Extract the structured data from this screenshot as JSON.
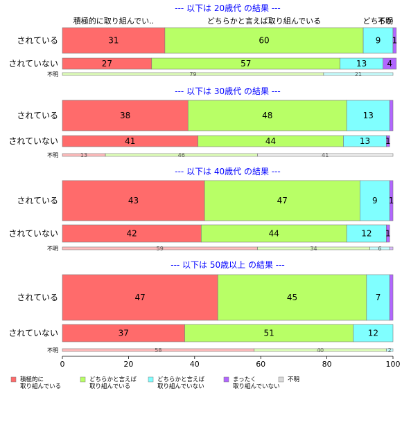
{
  "chart_data": {
    "type": "bar",
    "orientation": "horizontal",
    "stacked": true,
    "normalized_to": 100,
    "xlim": [
      0,
      100
    ],
    "xticks": [
      0,
      20,
      40,
      60,
      80,
      100
    ],
    "grid": false,
    "legend_position": "bottom",
    "top_labels": [
      {
        "text": "積極的に取り組んでい..",
        "at": 15.5
      },
      {
        "text": "どちらかと言えば取り組んでいる",
        "at": 61
      },
      {
        "text": "どちらか",
        "at": 95.5
      },
      {
        "text": "不明",
        "at": 100
      }
    ],
    "series": [
      {
        "name": "積極的に取り組んでいる",
        "legend_lines": [
          "積極的に",
          "取り組んでいる"
        ],
        "color": "#ff6b6b"
      },
      {
        "name": "どちらかと言えば取り組んでいる",
        "legend_lines": [
          "どちらかと言えば",
          "取り組んでいる"
        ],
        "color": "#b8ff66"
      },
      {
        "name": "どちらかと言えば取り組んでいない",
        "legend_lines": [
          "どちらかと言えば",
          "取り組んでいない"
        ],
        "color": "#80ffff"
      },
      {
        "name": "まったく取り組んでいない",
        "legend_lines": [
          "まったく",
          "取り組んでいない"
        ],
        "color": "#b266ff"
      },
      {
        "name": "不明",
        "legend_lines": [
          "不明"
        ],
        "color": "#d9d9d9"
      }
    ],
    "groups": [
      {
        "title": "--- 以下は 20歳代 の結果 ---",
        "rows": [
          {
            "label": "されている",
            "size": "large",
            "values": [
              31,
              60,
              9,
              1,
              0
            ],
            "data_labels": [
              "31",
              "60",
              "9",
              "1",
              ""
            ]
          },
          {
            "label": "されていない",
            "size": "medium",
            "values": [
              27,
              57,
              13,
              4,
              0
            ],
            "data_labels": [
              "27",
              "57",
              "13",
              "4",
              ""
            ]
          },
          {
            "label": "不明",
            "size": "thin",
            "values": [
              0,
              79,
              21,
              0,
              0
            ],
            "data_labels": [
              "",
              "79",
              "21",
              "",
              ""
            ]
          }
        ]
      },
      {
        "title": "--- 以下は 30歳代 の結果 ---",
        "rows": [
          {
            "label": "されている",
            "size": "large",
            "values": [
              38,
              48,
              13,
              1,
              0
            ],
            "data_labels": [
              "38",
              "48",
              "13",
              "",
              ""
            ]
          },
          {
            "label": "されていない",
            "size": "medium",
            "values": [
              41,
              44,
              13,
              1,
              0
            ],
            "data_labels": [
              "41",
              "44",
              "13",
              "1",
              ""
            ]
          },
          {
            "label": "不明",
            "size": "thin",
            "values": [
              13,
              46,
              0,
              0,
              41
            ],
            "data_labels": [
              "13",
              "46",
              "",
              "",
              "41"
            ]
          }
        ]
      },
      {
        "title": "--- 以下は 40歳代 の結果 ---",
        "rows": [
          {
            "label": "されている",
            "size": "large",
            "values": [
              43,
              47,
              9,
              1,
              0
            ],
            "data_labels": [
              "43",
              "47",
              "9",
              "1",
              ""
            ]
          },
          {
            "label": "されていない",
            "size": "medium",
            "values": [
              42,
              44,
              12,
              1,
              0
            ],
            "data_labels": [
              "42",
              "44",
              "12",
              "1",
              ""
            ]
          },
          {
            "label": "不明",
            "size": "thin",
            "values": [
              59,
              34,
              6,
              1,
              0
            ],
            "data_labels": [
              "59",
              "34",
              "6",
              "",
              ""
            ]
          }
        ]
      },
      {
        "title": "--- 以下は 50歳以上 の結果 ---",
        "rows": [
          {
            "label": "されている",
            "size": "large",
            "values": [
              47,
              45,
              7,
              1,
              0
            ],
            "data_labels": [
              "47",
              "45",
              "7",
              "",
              ""
            ]
          },
          {
            "label": "されていない",
            "size": "medium",
            "values": [
              37,
              51,
              12,
              0,
              0
            ],
            "data_labels": [
              "37",
              "51",
              "12",
              "",
              ""
            ]
          },
          {
            "label": "不明",
            "size": "thin",
            "values": [
              58,
              40,
              2,
              0,
              0
            ],
            "data_labels": [
              "58",
              "40",
              "2",
              "",
              ""
            ]
          }
        ]
      }
    ]
  }
}
